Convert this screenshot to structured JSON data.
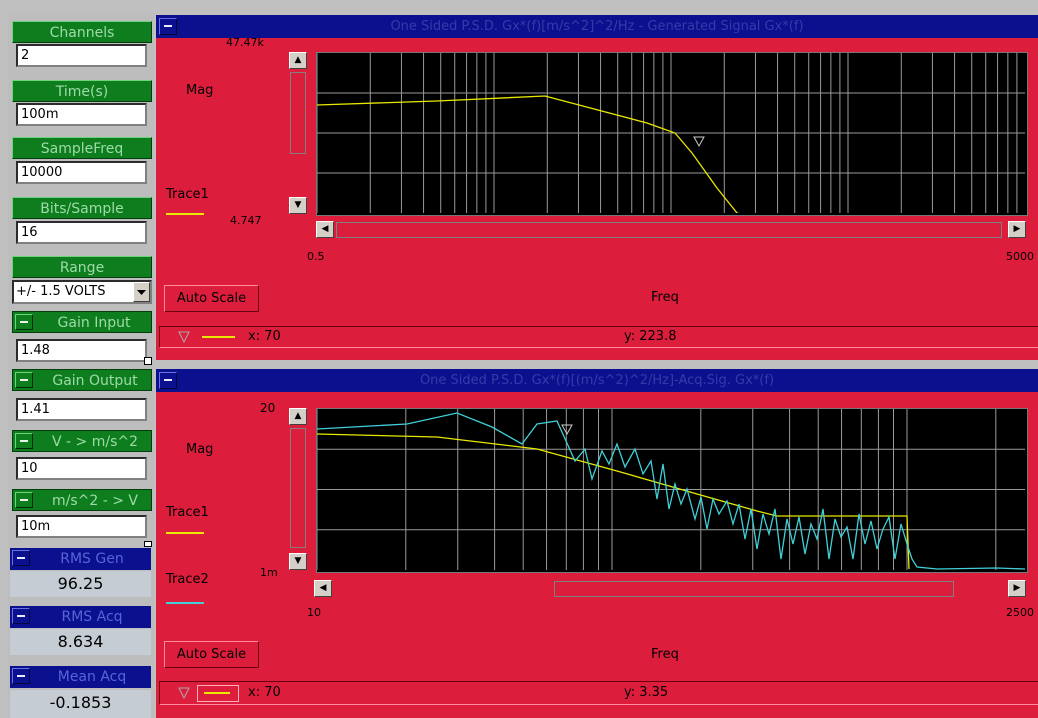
{
  "controls": {
    "channels": {
      "label": "Channels",
      "value": "2"
    },
    "time": {
      "label": "Time(s)",
      "value": "100m"
    },
    "sample_freq": {
      "label": "SampleFreq",
      "value": "10000"
    },
    "bits_sample": {
      "label": "Bits/Sample",
      "value": "16"
    },
    "range": {
      "label": "Range",
      "value": "+/- 1.5 VOLTS"
    },
    "gain_input": {
      "label": "Gain Input",
      "value": "1.48"
    },
    "gain_output": {
      "label": "Gain Output",
      "value": "1.41"
    },
    "v_to_ms2": {
      "label": "V - > m/s^2",
      "value": "10"
    },
    "ms2_to_v": {
      "label": "m/s^2 - > V",
      "value": "10m"
    }
  },
  "meters": {
    "rms_gen": {
      "label": "RMS Gen",
      "value": "96.25"
    },
    "rms_acq": {
      "label": "RMS Acq",
      "value": "8.634"
    },
    "mean_acq": {
      "label": "Mean Acq",
      "value": "-0.1853"
    }
  },
  "graph1": {
    "title": "One Sided P.S.D. Gx*(f)[m/s^2]^2/Hz - Generated Signal Gx*(f)",
    "y_label": "Mag",
    "y_max": "47.47k",
    "y_min": "4.747",
    "x_min": "0.5",
    "x_max": "5000",
    "x_label": "Freq",
    "auto_scale": "Auto Scale",
    "traces": [
      {
        "name": "Trace1",
        "color": "#e8e800"
      }
    ],
    "cursor_x": "x: 70",
    "cursor_y": "y: 223.8"
  },
  "graph2": {
    "title": "One Sided P.S.D. Gx*(f)[(m/s^2)^2/Hz]-Acq.Sig. Gx*(f)",
    "y_label": "Mag",
    "y_max": "20",
    "y_min": "1m",
    "x_min": "10",
    "x_max": "2500",
    "x_label": "Freq",
    "auto_scale": "Auto Scale",
    "traces": [
      {
        "name": "Trace1",
        "color": "#e8e800"
      },
      {
        "name": "Trace2",
        "color": "#3fd0d8"
      }
    ],
    "cursor_x": "x: 70",
    "cursor_y": "y: 3.35"
  },
  "icons": {
    "minimize": "minimize-icon",
    "scroll_up": "arrow-up-icon",
    "scroll_down": "arrow-down-icon",
    "scroll_left": "arrow-left-icon",
    "scroll_right": "arrow-right-icon",
    "cursor_marker": "triangle-cursor-icon",
    "dropdown": "chevron-down-icon"
  }
}
